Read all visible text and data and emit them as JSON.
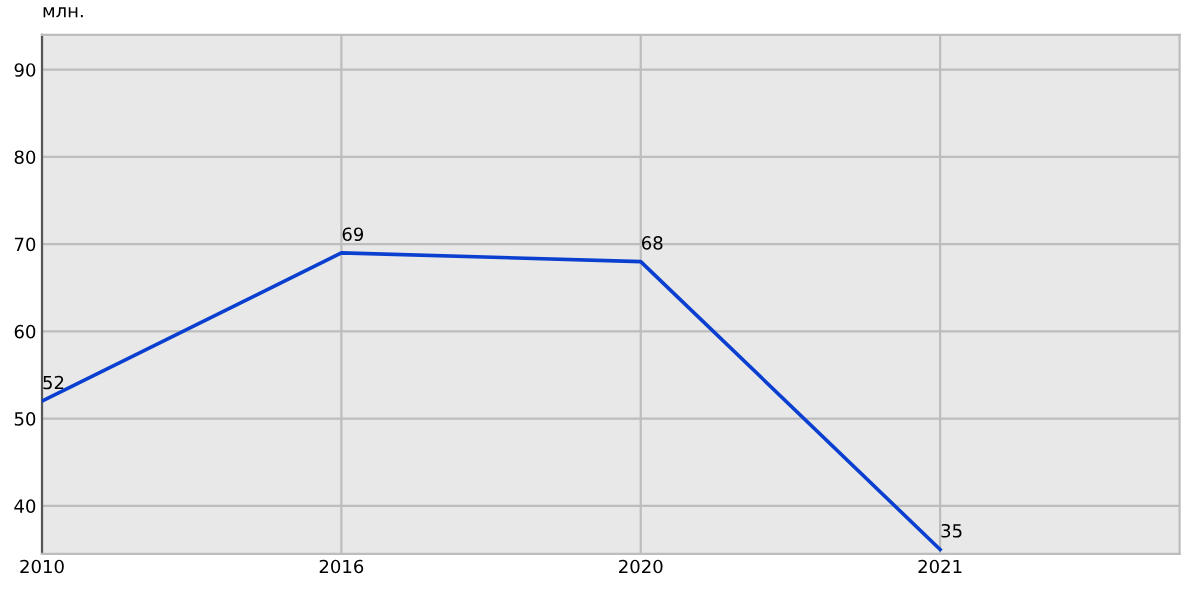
{
  "chart_data": {
    "type": "line",
    "ylabel": "млн.",
    "categories": [
      "2010",
      "2016",
      "2020",
      "2021"
    ],
    "series": [
      {
        "color": "#0a3fd0",
        "values": [
          52,
          69,
          68,
          35
        ]
      }
    ],
    "ylim": [
      34.5,
      94
    ],
    "yticks": [
      40,
      50,
      60,
      70,
      80,
      90
    ],
    "grid": true,
    "data_labels": true,
    "marker": "none",
    "line_style": "solid"
  }
}
